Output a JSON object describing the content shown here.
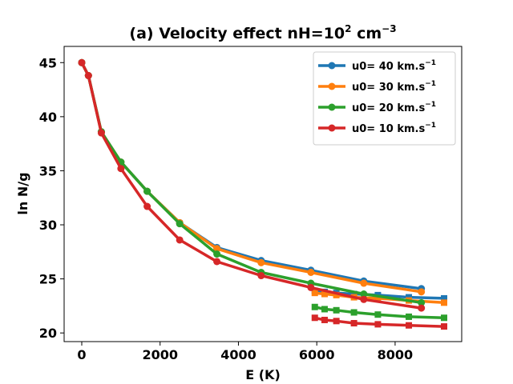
{
  "chart_data": {
    "type": "line",
    "title": {
      "main": "(a) Velocity effect nH=10",
      "sup": "2",
      "unit": " cm",
      "unit_sup": "−3"
    },
    "xlabel": "E (K)",
    "ylabel": "ln N/g",
    "xlim": [
      -450,
      9700
    ],
    "ylim": [
      19.2,
      46.5
    ],
    "xticks": [
      0,
      2000,
      4000,
      6000,
      8000
    ],
    "yticks": [
      20,
      25,
      30,
      35,
      40,
      45
    ],
    "legend_position": "top-right",
    "series": [
      {
        "name": "u0= 40 km.s",
        "name_sup": "−1",
        "color": "#1f77b4",
        "circle_x": [
          0,
          170,
          500,
          1000,
          1670,
          2500,
          3450,
          4580,
          5850,
          7200,
          8670
        ],
        "circle_y": [
          45.0,
          43.8,
          38.6,
          35.8,
          33.1,
          30.2,
          27.9,
          26.7,
          25.8,
          24.8,
          24.1
        ],
        "square_x": [
          5950,
          6200,
          6500,
          6950,
          7560,
          8350,
          9250
        ],
        "square_y": [
          23.9,
          23.8,
          23.7,
          23.6,
          23.5,
          23.3,
          23.2
        ]
      },
      {
        "name": "u0= 30 km.s",
        "name_sup": "−1",
        "color": "#ff7f0e",
        "circle_x": [
          0,
          170,
          500,
          1000,
          1670,
          2500,
          3450,
          4580,
          5850,
          7200,
          8670
        ],
        "circle_y": [
          45.0,
          43.8,
          38.6,
          35.8,
          33.1,
          30.2,
          27.8,
          26.5,
          25.6,
          24.6,
          23.8
        ],
        "square_x": [
          5950,
          6200,
          6500,
          6950,
          7560,
          8350,
          9250
        ],
        "square_y": [
          23.7,
          23.6,
          23.5,
          23.3,
          23.2,
          23.0,
          22.8
        ]
      },
      {
        "name": "u0= 20 km.s",
        "name_sup": "−1",
        "color": "#2ca02c",
        "circle_x": [
          0,
          170,
          500,
          1000,
          1670,
          2500,
          3450,
          4580,
          5850,
          7200,
          8670
        ],
        "circle_y": [
          45.0,
          43.8,
          38.6,
          35.8,
          33.1,
          30.1,
          27.3,
          25.6,
          24.6,
          23.6,
          22.8
        ],
        "square_x": [
          5950,
          6200,
          6500,
          6950,
          7560,
          8350,
          9250
        ],
        "square_y": [
          22.4,
          22.2,
          22.1,
          21.9,
          21.7,
          21.5,
          21.4
        ]
      },
      {
        "name": "u0= 10 km.s",
        "name_sup": "−1",
        "color": "#d62728",
        "circle_x": [
          0,
          170,
          500,
          1000,
          1670,
          2500,
          3450,
          4580,
          5850,
          7200,
          8670
        ],
        "circle_y": [
          45.0,
          43.8,
          38.5,
          35.2,
          31.7,
          28.6,
          26.6,
          25.3,
          24.2,
          23.1,
          22.3
        ],
        "square_x": [
          5950,
          6200,
          6500,
          6950,
          7560,
          8350,
          9250
        ],
        "square_y": [
          21.4,
          21.2,
          21.1,
          20.9,
          20.8,
          20.7,
          20.6
        ]
      }
    ]
  }
}
